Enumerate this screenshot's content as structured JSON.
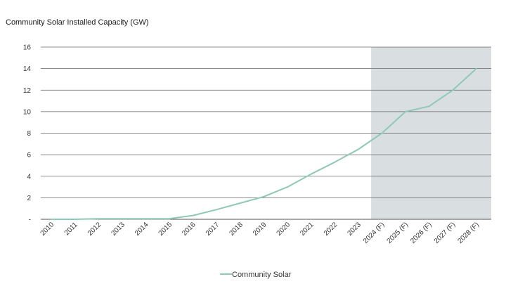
{
  "chart_data": {
    "type": "line",
    "title": "Community Solar Installed Capacity (GW)",
    "xlabel": "",
    "ylabel": "",
    "ylim": [
      0,
      16
    ],
    "yticks": [
      0,
      2,
      4,
      6,
      8,
      10,
      12,
      14,
      16
    ],
    "ytick_labels": [
      "-",
      "2",
      "4",
      "6",
      "8",
      "10",
      "12",
      "14",
      "16"
    ],
    "grid": "horizontal",
    "categories": [
      "2010",
      "2011",
      "2012",
      "2013",
      "2014",
      "2015",
      "2016",
      "2017",
      "2018",
      "2019",
      "2020",
      "2021",
      "2022",
      "2023",
      "2024 (F)",
      "2025 (F)",
      "2026 (F)",
      "2027 (F)",
      "2028 (F)"
    ],
    "series": [
      {
        "name": "Community Solar",
        "color": "#8fc9b5",
        "values": [
          0.0,
          0.0,
          0.05,
          0.05,
          0.05,
          0.05,
          0.35,
          0.9,
          1.5,
          2.1,
          3.0,
          4.2,
          5.3,
          6.5,
          8.0,
          10.0,
          10.5,
          12.0,
          14.0
        ]
      }
    ],
    "forecast_region": {
      "from": "2024 (F)",
      "to": "2028 (F)",
      "color": "#d9dfe1"
    },
    "legend": {
      "position": "bottom-center",
      "label": "Community Solar"
    }
  }
}
